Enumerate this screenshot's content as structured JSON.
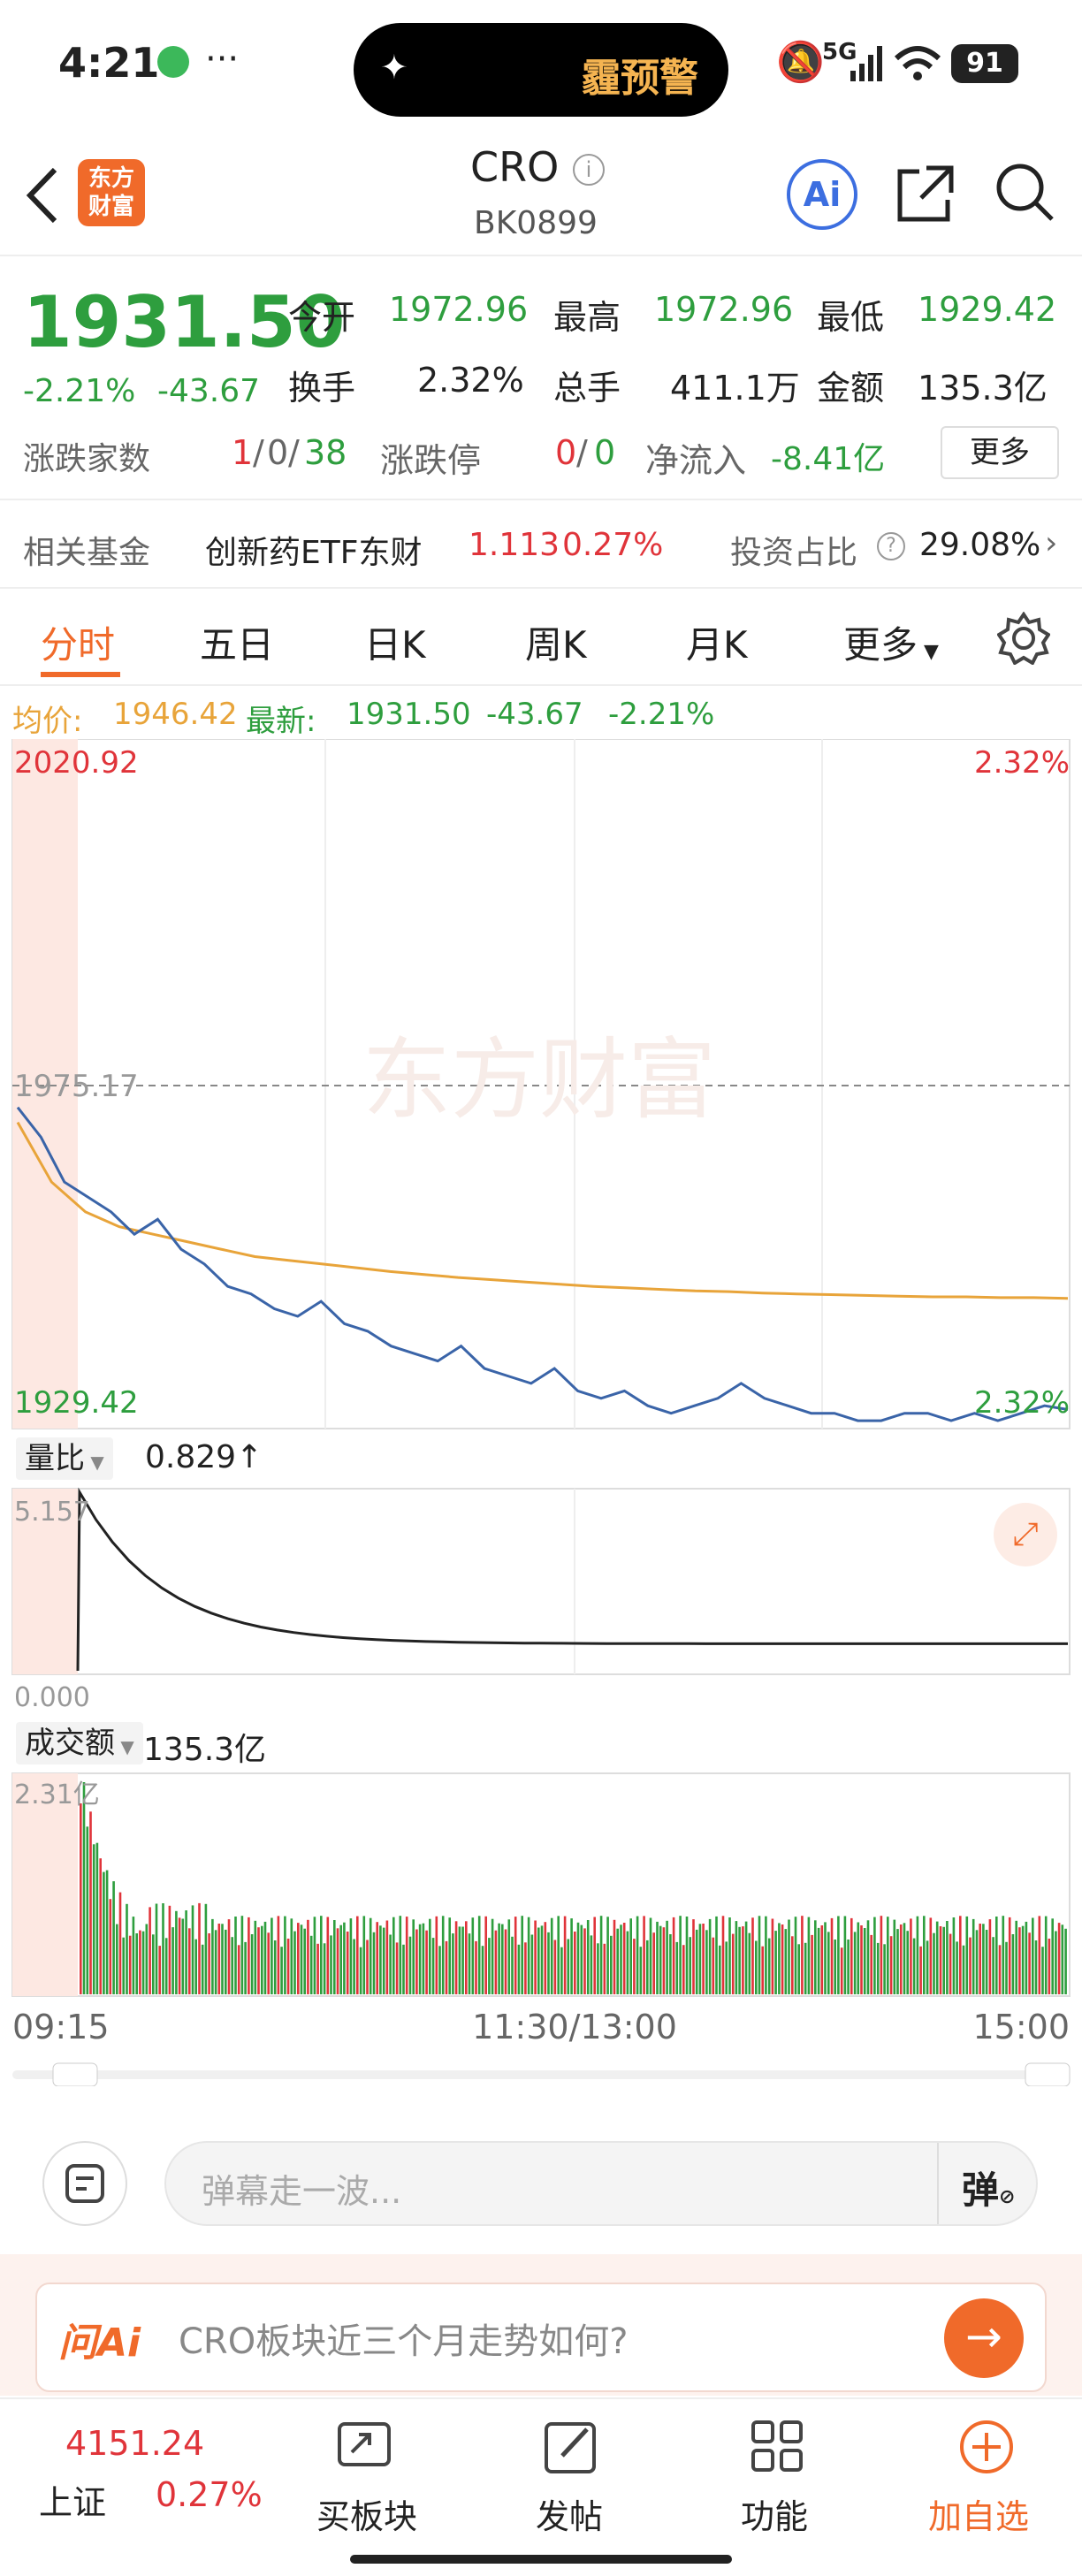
{
  "status_bar": {
    "time": "4:21",
    "dots": "···",
    "alert": "霾预警",
    "network": "5G",
    "battery": "91"
  },
  "header": {
    "app_logo": "东方\n财富",
    "logo_line1": "东方",
    "logo_line2": "财富",
    "title": "CRO",
    "code": "BK0899",
    "ai_label": "Ai"
  },
  "quote": {
    "price": "1931.50",
    "change_pct": "-2.21%",
    "change": "-43.67",
    "open_label": "今开",
    "open": "1972.96",
    "high_label": "最高",
    "high": "1972.96",
    "low_label": "最低",
    "low": "1929.42",
    "turnover_label": "换手",
    "turnover": "2.32%",
    "volume_label": "总手",
    "volume": "411.1万",
    "amount_label": "金额",
    "amount": "135.3亿",
    "updown_label": "涨跌家数",
    "up": "1",
    "flat": "0",
    "down": "38",
    "sep": "/",
    "limit_label": "涨跌停",
    "limit_up": "0",
    "limit_down": "0",
    "netflow_label": "净流入",
    "netflow": "-8.41亿",
    "more_button": "更多"
  },
  "fund": {
    "label": "相关基金",
    "name": "创新药ETF东财",
    "price": "1.113",
    "pct": "0.27%",
    "ratio_label": "投资占比",
    "ratio": "29.08%"
  },
  "tabs": {
    "items": [
      "分时",
      "五日",
      "日K",
      "周K",
      "月K",
      "更多"
    ],
    "active": 0
  },
  "avg_info": {
    "avg_label": "均价:",
    "avg": "1946.42",
    "latest_label": "最新:",
    "latest": "1931.50",
    "change": "-43.67",
    "pct": "-2.21%"
  },
  "chart_data": {
    "type": "line",
    "price_axis": {
      "top": "2020.92",
      "mid": "1975.17",
      "bottom": "1929.42",
      "top_pct": "2.32%",
      "bottom_pct": "2.32%"
    },
    "x_labels": [
      "09:15",
      "11:30/13:00",
      "15:00"
    ],
    "series": [
      {
        "name": "最新",
        "values": [
          1972,
          1968,
          1962,
          1960,
          1958,
          1955,
          1957,
          1953,
          1951,
          1948,
          1947,
          1945,
          1944,
          1946,
          1943,
          1942,
          1940,
          1939,
          1938,
          1940,
          1937,
          1936,
          1935,
          1937,
          1934,
          1933,
          1934,
          1932,
          1931,
          1932,
          1933,
          1935,
          1933,
          1932,
          1931,
          1931,
          1930,
          1930,
          1931,
          1931,
          1930,
          1931,
          1930,
          1931,
          1932,
          1931.5
        ]
      },
      {
        "name": "均价",
        "values": [
          1970,
          1962,
          1958,
          1956,
          1955,
          1954,
          1953,
          1952,
          1951.5,
          1951,
          1950.5,
          1950,
          1949.6,
          1949.2,
          1948.9,
          1948.6,
          1948.3,
          1948,
          1947.8,
          1947.6,
          1947.4,
          1947.3,
          1947.1,
          1947,
          1946.9,
          1946.8,
          1946.7,
          1946.6,
          1946.6,
          1946.5,
          1946.5,
          1946.4
        ]
      }
    ],
    "ratio": {
      "label": "量比",
      "value": "0.829↑",
      "max": "5.157",
      "min": "0.000"
    },
    "volume": {
      "label": "成交额",
      "value": "135.3亿",
      "max": "2.31亿"
    }
  },
  "watermark": "东方财富",
  "danmu": {
    "placeholder": "弹幕走一波...",
    "button": "弹"
  },
  "ask_ai": {
    "brand": "问Ai",
    "question": "CRO板块近三个月走势如何?"
  },
  "bottom": {
    "index_value": "4151.24",
    "index_name": "上证",
    "index_pct": "0.27%",
    "items": [
      "买板块",
      "发帖",
      "功能",
      "加自选"
    ]
  },
  "colors": {
    "up": "#e0343a",
    "down": "#2e9e3e",
    "avg": "#e8a43a",
    "price_line": "#3a64a8",
    "accent": "#f06a2a"
  }
}
